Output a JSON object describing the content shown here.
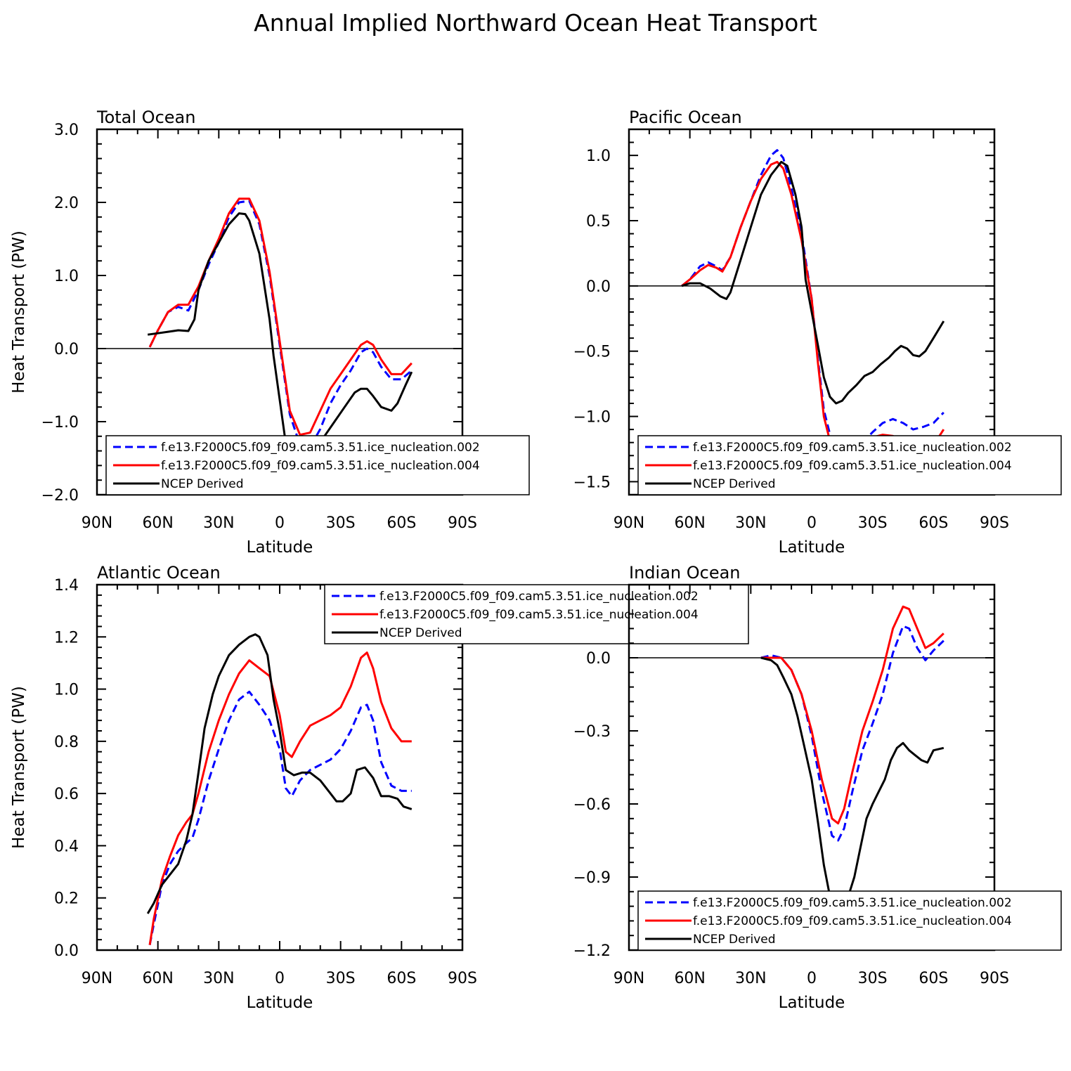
{
  "figure": {
    "title": "Annual Implied Northward Ocean Heat Transport",
    "x_axis_label": "Latitude",
    "y_axis_label": "Heat Transport (PW)"
  },
  "colors": {
    "series_002": "#0000ff",
    "series_004": "#ff0000",
    "ncep": "#000000"
  },
  "chart_data": [
    {
      "type": "line",
      "title": "Total Ocean",
      "xlabel": "Latitude",
      "ylabel": "Heat Transport (PW)",
      "xlim": [
        90,
        -90
      ],
      "ylim": [
        -2.0,
        3.0
      ],
      "xticks": [
        90,
        60,
        30,
        0,
        -30,
        -60,
        -90
      ],
      "xticklabels": [
        "90N",
        "60N",
        "30N",
        "0",
        "30S",
        "60S",
        "90S"
      ],
      "yticks": [
        -2.0,
        -1.0,
        0.0,
        1.0,
        2.0,
        3.0
      ],
      "yticklabels": [
        "−2.0",
        "−1.0",
        "0.0",
        "1.0",
        "2.0",
        "3.0"
      ],
      "zero_line": true,
      "legend_position": "bottom-right",
      "series": [
        {
          "name": "f.e13.F2000C5.f09_f09.cam5.3.51.ice_nucleation.002",
          "style": "dashed",
          "color_key": "series_002",
          "x": [
            64,
            60,
            55,
            50,
            45,
            40,
            35,
            30,
            25,
            20,
            15,
            10,
            5,
            0,
            -5,
            -10,
            -15,
            -20,
            -25,
            -30,
            -35,
            -40,
            -43,
            -46,
            -50,
            -55,
            -60,
            -65
          ],
          "y": [
            0.02,
            0.25,
            0.5,
            0.57,
            0.52,
            0.8,
            1.15,
            1.45,
            1.8,
            2.0,
            2.02,
            1.7,
            1.0,
            0.05,
            -0.9,
            -1.32,
            -1.35,
            -1.1,
            -0.75,
            -0.5,
            -0.3,
            -0.05,
            0.0,
            -0.05,
            -0.25,
            -0.42,
            -0.42,
            -0.3
          ]
        },
        {
          "name": "f.e13.F2000C5.f09_f09.cam5.3.51.ice_nucleation.004",
          "style": "solid",
          "color_key": "series_004",
          "x": [
            64,
            60,
            55,
            50,
            45,
            40,
            35,
            30,
            25,
            20,
            15,
            10,
            5,
            0,
            -5,
            -10,
            -15,
            -20,
            -25,
            -30,
            -35,
            -40,
            -43,
            -46,
            -50,
            -55,
            -60,
            -65
          ],
          "y": [
            0.02,
            0.25,
            0.5,
            0.6,
            0.6,
            0.85,
            1.2,
            1.5,
            1.85,
            2.05,
            2.05,
            1.75,
            1.05,
            0.1,
            -0.85,
            -1.18,
            -1.15,
            -0.85,
            -0.55,
            -0.35,
            -0.15,
            0.05,
            0.1,
            0.05,
            -0.15,
            -0.35,
            -0.35,
            -0.2
          ]
        },
        {
          "name": "NCEP Derived",
          "style": "solid",
          "color_key": "ncep",
          "x": [
            65,
            60,
            55,
            50,
            45,
            42,
            40,
            35,
            30,
            25,
            20,
            17,
            15,
            10,
            5,
            3,
            0,
            -3,
            -7,
            -10,
            -13,
            -18,
            -22,
            -27,
            -32,
            -37,
            -40,
            -43,
            -46,
            -50,
            -55,
            -58,
            -62,
            -65
          ],
          "y": [
            0.19,
            0.21,
            0.23,
            0.25,
            0.24,
            0.4,
            0.8,
            1.2,
            1.45,
            1.7,
            1.85,
            1.84,
            1.75,
            1.3,
            0.4,
            -0.1,
            -0.7,
            -1.3,
            -1.6,
            -1.65,
            -1.6,
            -1.45,
            -1.2,
            -1.0,
            -0.8,
            -0.6,
            -0.55,
            -0.55,
            -0.65,
            -0.8,
            -0.85,
            -0.75,
            -0.5,
            -0.32
          ]
        }
      ]
    },
    {
      "type": "line",
      "title": "Pacific Ocean",
      "xlabel": "Latitude",
      "ylabel": "",
      "xlim": [
        90,
        -90
      ],
      "ylim": [
        -1.6,
        1.2
      ],
      "xticks": [
        90,
        60,
        30,
        0,
        -30,
        -60,
        -90
      ],
      "xticklabels": [
        "90N",
        "60N",
        "30N",
        "0",
        "30S",
        "60S",
        "90S"
      ],
      "yticks": [
        -1.5,
        -1.0,
        -0.5,
        0.0,
        0.5,
        1.0
      ],
      "yticklabels": [
        "−1.5",
        "−1.0",
        "−0.5",
        "0.0",
        "0.5",
        "1.0"
      ],
      "zero_line": true,
      "legend_position": "bottom-right",
      "series": [
        {
          "name": "f.e13.F2000C5.f09_f09.cam5.3.51.ice_nucleation.002",
          "style": "dashed",
          "color_key": "series_002",
          "x": [
            64,
            60,
            55,
            51,
            47,
            44,
            40,
            35,
            30,
            25,
            20,
            17,
            14,
            10,
            5,
            0,
            -3,
            -6,
            -10,
            -15,
            -20,
            -25,
            -30,
            -35,
            -40,
            -45,
            -50,
            -55,
            -60,
            -65
          ],
          "y": [
            0.0,
            0.05,
            0.15,
            0.18,
            0.15,
            0.12,
            0.22,
            0.45,
            0.65,
            0.85,
            1.0,
            1.04,
            0.98,
            0.75,
            0.4,
            -0.1,
            -0.55,
            -0.95,
            -1.2,
            -1.3,
            -1.28,
            -1.2,
            -1.12,
            -1.05,
            -1.02,
            -1.05,
            -1.1,
            -1.08,
            -1.05,
            -0.97
          ]
        },
        {
          "name": "f.e13.F2000C5.f09_f09.cam5.3.51.ice_nucleation.004",
          "style": "solid",
          "color_key": "series_004",
          "x": [
            64,
            60,
            55,
            51,
            47,
            44,
            40,
            35,
            30,
            25,
            20,
            17,
            14,
            10,
            5,
            0,
            -3,
            -6,
            -10,
            -15,
            -20,
            -25,
            -30,
            -35,
            -40,
            -45,
            -50,
            -55,
            -60,
            -65
          ],
          "y": [
            0.0,
            0.05,
            0.12,
            0.16,
            0.14,
            0.11,
            0.22,
            0.45,
            0.65,
            0.82,
            0.93,
            0.95,
            0.9,
            0.7,
            0.35,
            -0.1,
            -0.58,
            -1.0,
            -1.25,
            -1.33,
            -1.3,
            -1.22,
            -1.16,
            -1.14,
            -1.15,
            -1.22,
            -1.3,
            -1.28,
            -1.22,
            -1.1
          ]
        },
        {
          "name": "NCEP Derived",
          "style": "solid",
          "color_key": "ncep",
          "x": [
            64,
            60,
            55,
            50,
            45,
            42,
            40,
            35,
            30,
            25,
            20,
            15,
            12,
            8,
            5,
            3,
            0,
            -3,
            -6,
            -9,
            -12,
            -15,
            -18,
            -22,
            -26,
            -30,
            -34,
            -38,
            -41,
            -44,
            -47,
            -50,
            -53,
            -56,
            -60,
            -65
          ],
          "y": [
            0.0,
            0.02,
            0.02,
            -0.02,
            -0.08,
            -0.1,
            -0.05,
            0.2,
            0.45,
            0.7,
            0.85,
            0.95,
            0.92,
            0.7,
            0.45,
            0.05,
            -0.2,
            -0.45,
            -0.7,
            -0.85,
            -0.9,
            -0.88,
            -0.82,
            -0.76,
            -0.69,
            -0.66,
            -0.6,
            -0.55,
            -0.5,
            -0.46,
            -0.48,
            -0.53,
            -0.54,
            -0.5,
            -0.4,
            -0.27
          ]
        }
      ]
    },
    {
      "type": "line",
      "title": "Atlantic Ocean",
      "xlabel": "Latitude",
      "ylabel": "Heat Transport (PW)",
      "xlim": [
        90,
        -90
      ],
      "ylim": [
        0.0,
        1.4
      ],
      "xticks": [
        90,
        60,
        30,
        0,
        -30,
        -60,
        -90
      ],
      "xticklabels": [
        "90N",
        "60N",
        "30N",
        "0",
        "30S",
        "60S",
        "90S"
      ],
      "yticks": [
        0.0,
        0.2,
        0.4,
        0.6,
        0.8,
        1.0,
        1.2,
        1.4
      ],
      "yticklabels": [
        "0.0",
        "0.2",
        "0.4",
        "0.6",
        "0.8",
        "1.0",
        "1.2",
        "1.4"
      ],
      "zero_line": false,
      "legend_position": "top-right",
      "series": [
        {
          "name": "f.e13.F2000C5.f09_f09.cam5.3.51.ice_nucleation.002",
          "style": "dashed",
          "color_key": "series_002",
          "x": [
            64,
            62,
            58,
            54,
            50,
            46,
            43,
            40,
            35,
            30,
            25,
            20,
            15,
            10,
            5,
            0,
            -3,
            -6,
            -10,
            -15,
            -20,
            -25,
            -30,
            -35,
            -40,
            -43,
            -46,
            -50,
            -55,
            -60,
            -65
          ],
          "y": [
            0.02,
            0.1,
            0.25,
            0.33,
            0.38,
            0.41,
            0.43,
            0.5,
            0.65,
            0.77,
            0.88,
            0.96,
            0.99,
            0.94,
            0.88,
            0.77,
            0.62,
            0.59,
            0.65,
            0.69,
            0.71,
            0.73,
            0.77,
            0.84,
            0.93,
            0.94,
            0.88,
            0.72,
            0.63,
            0.61,
            0.61
          ]
        },
        {
          "name": "f.e13.F2000C5.f09_f09.cam5.3.51.ice_nucleation.004",
          "style": "solid",
          "color_key": "series_004",
          "x": [
            64,
            62,
            58,
            54,
            50,
            46,
            43,
            40,
            35,
            30,
            25,
            20,
            15,
            10,
            5,
            0,
            -3,
            -6,
            -10,
            -15,
            -20,
            -25,
            -30,
            -35,
            -40,
            -43,
            -46,
            -50,
            -55,
            -60,
            -65
          ],
          "y": [
            0.02,
            0.12,
            0.27,
            0.36,
            0.44,
            0.49,
            0.52,
            0.6,
            0.76,
            0.88,
            0.98,
            1.06,
            1.11,
            1.08,
            1.05,
            0.9,
            0.76,
            0.74,
            0.8,
            0.86,
            0.88,
            0.9,
            0.93,
            1.01,
            1.12,
            1.14,
            1.08,
            0.95,
            0.85,
            0.8,
            0.8
          ]
        },
        {
          "name": "NCEP Derived",
          "style": "solid",
          "color_key": "ncep",
          "x": [
            65,
            62,
            58,
            54,
            50,
            46,
            43,
            40,
            37,
            33,
            30,
            25,
            20,
            15,
            12,
            10,
            6,
            3,
            0,
            -3,
            -7,
            -11,
            -15,
            -20,
            -25,
            -28,
            -31,
            -35,
            -38,
            -42,
            -46,
            -50,
            -54,
            -58,
            -61,
            -65
          ],
          "y": [
            0.14,
            0.18,
            0.25,
            0.29,
            0.33,
            0.42,
            0.52,
            0.68,
            0.85,
            0.98,
            1.05,
            1.13,
            1.17,
            1.2,
            1.21,
            1.2,
            1.13,
            0.96,
            0.84,
            0.69,
            0.67,
            0.68,
            0.68,
            0.65,
            0.6,
            0.57,
            0.57,
            0.6,
            0.69,
            0.7,
            0.66,
            0.59,
            0.59,
            0.58,
            0.55,
            0.54
          ]
        }
      ]
    },
    {
      "type": "line",
      "title": "Indian Ocean",
      "xlabel": "Latitude",
      "ylabel": "",
      "xlim": [
        90,
        -90
      ],
      "ylim": [
        -1.2,
        0.3
      ],
      "xticks": [
        90,
        60,
        30,
        0,
        -30,
        -60,
        -90
      ],
      "xticklabels": [
        "90N",
        "60N",
        "30N",
        "0",
        "30S",
        "60S",
        "90S"
      ],
      "yticks": [
        -1.2,
        -0.9,
        -0.6,
        -0.3,
        0.0
      ],
      "yticklabels": [
        "−1.2",
        "−0.9",
        "−0.6",
        "−0.3",
        "0.0"
      ],
      "zero_line": true,
      "legend_position": "bottom-right",
      "series": [
        {
          "name": "f.e13.F2000C5.f09_f09.cam5.3.51.ice_nucleation.002",
          "style": "dashed",
          "color_key": "series_002",
          "x": [
            25,
            20,
            15,
            10,
            5,
            0,
            -5,
            -10,
            -13,
            -16,
            -20,
            -25,
            -30,
            -35,
            -40,
            -45,
            -48,
            -52,
            -56,
            -60,
            -65
          ],
          "y": [
            0.0,
            0.01,
            0.0,
            -0.05,
            -0.15,
            -0.32,
            -0.55,
            -0.73,
            -0.75,
            -0.7,
            -0.55,
            -0.38,
            -0.27,
            -0.15,
            0.02,
            0.13,
            0.12,
            0.04,
            -0.01,
            0.03,
            0.07
          ]
        },
        {
          "name": "f.e13.F2000C5.f09_f09.cam5.3.51.ice_nucleation.004",
          "style": "solid",
          "color_key": "series_004",
          "x": [
            25,
            20,
            15,
            10,
            5,
            0,
            -5,
            -10,
            -13,
            -16,
            -20,
            -25,
            -30,
            -35,
            -40,
            -45,
            -48,
            -52,
            -56,
            -60,
            -65
          ],
          "y": [
            0.0,
            0.0,
            0.0,
            -0.05,
            -0.15,
            -0.3,
            -0.5,
            -0.66,
            -0.68,
            -0.62,
            -0.47,
            -0.3,
            -0.18,
            -0.05,
            0.12,
            0.21,
            0.2,
            0.12,
            0.04,
            0.06,
            0.1
          ]
        },
        {
          "name": "NCEP Derived",
          "style": "solid",
          "color_key": "ncep",
          "x": [
            25,
            20,
            17,
            14,
            10,
            7,
            4,
            0,
            -3,
            -6,
            -9,
            -12,
            -15,
            -18,
            -21,
            -24,
            -27,
            -30,
            -33,
            -36,
            -39,
            -42,
            -45,
            -48,
            -51,
            -54,
            -57,
            -60,
            -65
          ],
          "y": [
            0.0,
            -0.01,
            -0.03,
            -0.08,
            -0.15,
            -0.24,
            -0.35,
            -0.5,
            -0.67,
            -0.85,
            -0.98,
            -1.05,
            -1.02,
            -0.98,
            -0.9,
            -0.78,
            -0.66,
            -0.6,
            -0.55,
            -0.5,
            -0.42,
            -0.37,
            -0.35,
            -0.38,
            -0.4,
            -0.42,
            -0.43,
            -0.38,
            -0.37
          ]
        }
      ]
    }
  ]
}
